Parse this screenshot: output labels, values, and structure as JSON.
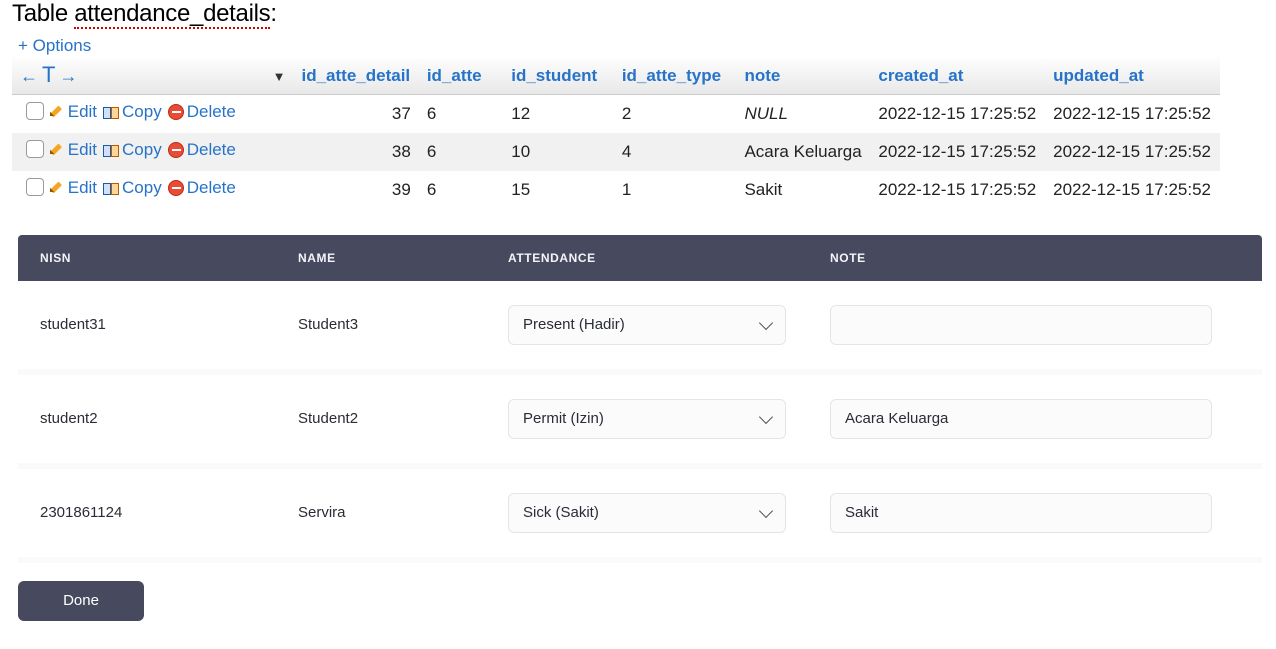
{
  "pma": {
    "title_plain": "Table ",
    "title_underlined": "attendance_details",
    "title_colon": ":",
    "options_label": "+ Options",
    "row_actions": {
      "edit": "Edit",
      "copy": "Copy",
      "delete": "Delete"
    },
    "columns": [
      "id_atte_detail",
      "id_atte",
      "id_student",
      "id_atte_type",
      "note",
      "created_at",
      "updated_at"
    ],
    "col_widths": {
      "actions": 280,
      "id_atte_detail": 118,
      "id_atte": 84,
      "id_student": 110,
      "id_atte_type": 122,
      "note": 132,
      "created_at": 172,
      "updated_at": 172
    },
    "header_text_color": "#2673c9",
    "rows": [
      {
        "id_atte_detail": "37",
        "id_atte": "6",
        "id_student": "12",
        "id_atte_type": "2",
        "note": null,
        "created_at": "2022-12-15 17:25:52",
        "updated_at": "2022-12-15 17:25:52"
      },
      {
        "id_atte_detail": "38",
        "id_atte": "6",
        "id_student": "10",
        "id_atte_type": "4",
        "note": "Acara Keluarga",
        "created_at": "2022-12-15 17:25:52",
        "updated_at": "2022-12-15 17:25:52"
      },
      {
        "id_atte_detail": "39",
        "id_atte": "6",
        "id_student": "15",
        "id_atte_type": "1",
        "note": "Sakit",
        "created_at": "2022-12-15 17:25:52",
        "updated_at": "2022-12-15 17:25:52"
      }
    ]
  },
  "form": {
    "headers": {
      "nisn": "NISN",
      "name": "NAME",
      "attendance": "ATTENDANCE",
      "note": "NOTE"
    },
    "header_bg": "#474a5f",
    "header_color": "#f4f4f7",
    "input_border": "#e4e4ea",
    "input_bg": "#fbfbfc",
    "rows": [
      {
        "nisn": "student31",
        "name": "Student3",
        "attendance": "Present (Hadir)",
        "note": ""
      },
      {
        "nisn": "student2",
        "name": "Student2",
        "attendance": "Permit (Izin)",
        "note": "Acara Keluarga"
      },
      {
        "nisn": "2301861124",
        "name": "Servira",
        "attendance": "Sick (Sakit)",
        "note": "Sakit"
      }
    ],
    "done_label": "Done",
    "done_bg": "#474a5f"
  }
}
